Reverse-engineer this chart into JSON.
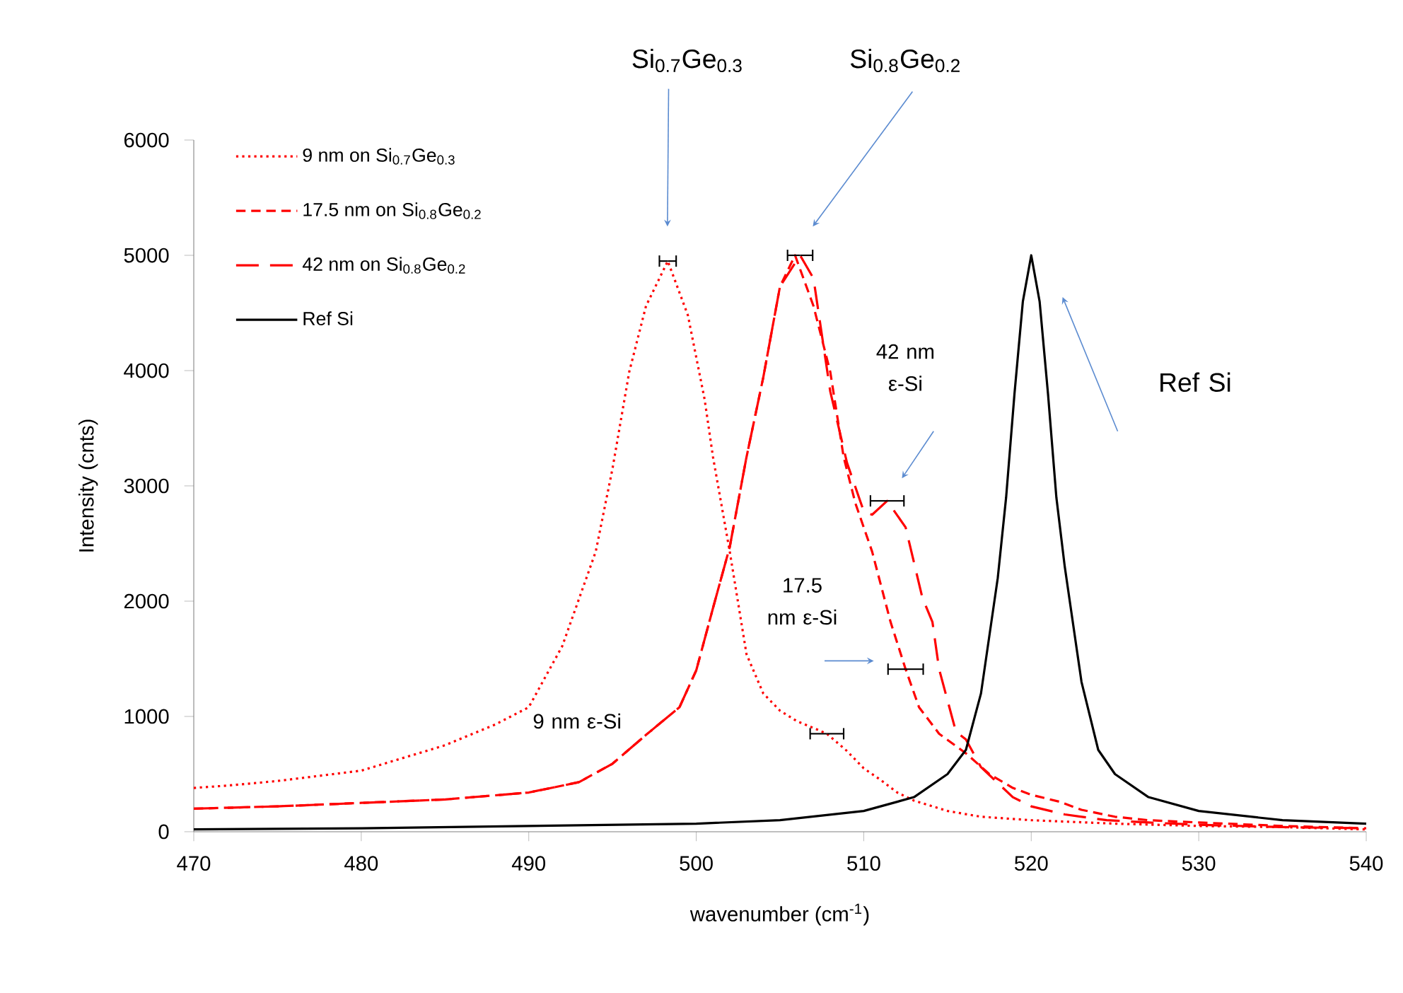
{
  "chart_data": {
    "type": "line",
    "xlabel": "wavenumber (cm$^{-1}$)",
    "ylabel": "Intensity (cnts)",
    "xlim": [
      470,
      540
    ],
    "ylim": [
      0,
      6000
    ],
    "xticks": [
      470,
      480,
      490,
      500,
      510,
      520,
      530,
      540
    ],
    "yticks": [
      0,
      1000,
      2000,
      3000,
      4000,
      5000,
      6000
    ],
    "legend": "top left",
    "series": [
      {
        "name": "9 nm on Si$_{0.7}$Ge$_{0.3}$",
        "color": "#ff0000",
        "line_style": "dotted",
        "x": [
          470,
          472,
          475,
          480,
          485,
          488,
          490,
          492,
          494,
          495,
          496,
          497,
          498.3,
          499.5,
          500.5,
          501,
          502,
          503,
          504,
          505,
          506,
          507,
          507.8,
          509,
          510,
          511,
          512,
          513,
          515,
          517,
          520,
          525,
          530,
          535,
          540
        ],
        "values": [
          380,
          400,
          440,
          530,
          750,
          930,
          1080,
          1610,
          2430,
          3150,
          3990,
          4560,
          4950,
          4480,
          3750,
          3250,
          2430,
          1540,
          1200,
          1050,
          960,
          900,
          850,
          700,
          550,
          450,
          340,
          270,
          180,
          130,
          100,
          70,
          50,
          40,
          20
        ],
        "xerrors": [
          null,
          null,
          null,
          null,
          null,
          null,
          null,
          null,
          null,
          null,
          null,
          null,
          0.5,
          null,
          null,
          null,
          null,
          null,
          null,
          null,
          null,
          null,
          1.0,
          null,
          null,
          null,
          null,
          null,
          null,
          null,
          null,
          null,
          null,
          null,
          null
        ]
      },
      {
        "name": "17.5 nm on Si$_{0.8}$Ge$_{0.2}$",
        "color": "#ff0000",
        "line_style": "dashed",
        "x": [
          470,
          475,
          480,
          485,
          490,
          493,
          495,
          497,
          499,
          500,
          501,
          502,
          503,
          504,
          505,
          505.9,
          507,
          508,
          508.8,
          509.5,
          510.5,
          511.6,
          512.5,
          513.3,
          514.5,
          516.1,
          517.5,
          518.9,
          520,
          521.7,
          523,
          525,
          527,
          530,
          535,
          540
        ],
        "values": [
          200,
          220,
          250,
          280,
          340,
          430,
          590,
          840,
          1080,
          1400,
          1940,
          2470,
          3250,
          3940,
          4730,
          5000,
          4560,
          3990,
          3250,
          2850,
          2430,
          1820,
          1410,
          1080,
          850,
          680,
          500,
          380,
          320,
          260,
          190,
          130,
          100,
          80,
          50,
          30
        ],
        "xerrors": [
          null,
          null,
          null,
          null,
          null,
          null,
          null,
          null,
          null,
          null,
          null,
          null,
          null,
          null,
          null,
          null,
          null,
          null,
          null,
          null,
          null,
          null,
          1.05,
          null,
          null,
          null,
          null,
          null,
          null,
          null,
          null,
          null,
          null,
          null,
          null,
          null
        ]
      },
      {
        "name": "42 nm on Si$_{0.8}$Ge$_{0.2}$",
        "color": "#ff0000",
        "line_style": "dashed",
        "x": [
          470,
          475,
          480,
          485,
          490,
          493,
          495,
          497,
          499,
          500,
          501,
          502,
          503,
          504,
          505,
          506.2,
          507,
          508,
          509,
          510,
          510.5,
          511.4,
          512.5,
          513.5,
          514.1,
          514.5,
          515.5,
          516.1,
          517,
          518.9,
          520,
          522,
          524.5,
          527,
          530,
          535,
          540
        ],
        "values": [
          200,
          220,
          250,
          280,
          340,
          430,
          590,
          840,
          1080,
          1400,
          1940,
          2470,
          3250,
          3940,
          4730,
          5000,
          4800,
          3820,
          3200,
          2780,
          2750,
          2870,
          2640,
          2030,
          1820,
          1410,
          870,
          800,
          560,
          300,
          220,
          150,
          100,
          80,
          60,
          40,
          30
        ],
        "xerrors": [
          null,
          null,
          null,
          null,
          null,
          null,
          null,
          null,
          null,
          null,
          null,
          null,
          null,
          null,
          null,
          0.75,
          null,
          null,
          null,
          null,
          null,
          1.0,
          null,
          null,
          null,
          null,
          null,
          null,
          null,
          null,
          null,
          null,
          null,
          null,
          null,
          null,
          null
        ]
      },
      {
        "name": "Ref Si",
        "color": "#000000",
        "line_style": "solid",
        "x": [
          470,
          480,
          490,
          500,
          505,
          510,
          513,
          515,
          516.1,
          517,
          518,
          518.5,
          519,
          519.5,
          520,
          520.5,
          521,
          521.5,
          522,
          523,
          524,
          525,
          527,
          530,
          535,
          540
        ],
        "values": [
          20,
          30,
          50,
          70,
          100,
          180,
          300,
          500,
          710,
          1200,
          2200,
          2900,
          3800,
          4600,
          5000,
          4600,
          3800,
          2900,
          2300,
          1300,
          710,
          500,
          300,
          180,
          100,
          70
        ]
      }
    ],
    "annotations": [
      "Si$_{0.7}$Ge$_{0.3}$",
      "Si$_{0.8}$Ge$_{0.2}$",
      "42 nm ε-Si",
      "17.5 nm ε-Si",
      "9 nm ε-Si",
      "Ref Si"
    ]
  }
}
